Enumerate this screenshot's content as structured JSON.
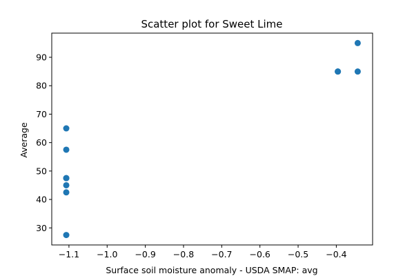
{
  "chart_data": {
    "type": "scatter",
    "title": "Scatter plot for Sweet Lime",
    "xlabel": "Surface soil moisture anomaly  - USDA SMAP: avg",
    "ylabel": "Average",
    "xlim": [
      -1.145,
      -0.305
    ],
    "ylim": [
      24.0,
      98.5
    ],
    "xticks": [
      -1.1,
      -1.0,
      -0.9,
      -0.8,
      -0.7,
      -0.6,
      -0.5,
      -0.4
    ],
    "xtick_labels": [
      "−1.1",
      "−1.0",
      "−0.9",
      "−0.8",
      "−0.7",
      "−0.6",
      "−0.5",
      "−0.4"
    ],
    "yticks": [
      30,
      40,
      50,
      60,
      70,
      80,
      90
    ],
    "ytick_labels": [
      "30",
      "40",
      "50",
      "60",
      "70",
      "80",
      "90"
    ],
    "grid": false,
    "color": "#1f77b4",
    "points": [
      {
        "x": -1.107,
        "y": 65.0
      },
      {
        "x": -1.107,
        "y": 57.5
      },
      {
        "x": -1.107,
        "y": 47.5
      },
      {
        "x": -1.107,
        "y": 47.5
      },
      {
        "x": -1.107,
        "y": 45.0
      },
      {
        "x": -1.107,
        "y": 42.5
      },
      {
        "x": -1.107,
        "y": 27.5
      },
      {
        "x": -0.396,
        "y": 85.0
      },
      {
        "x": -0.396,
        "y": 85.0
      },
      {
        "x": -0.344,
        "y": 95.0
      },
      {
        "x": -0.344,
        "y": 85.0
      }
    ]
  }
}
